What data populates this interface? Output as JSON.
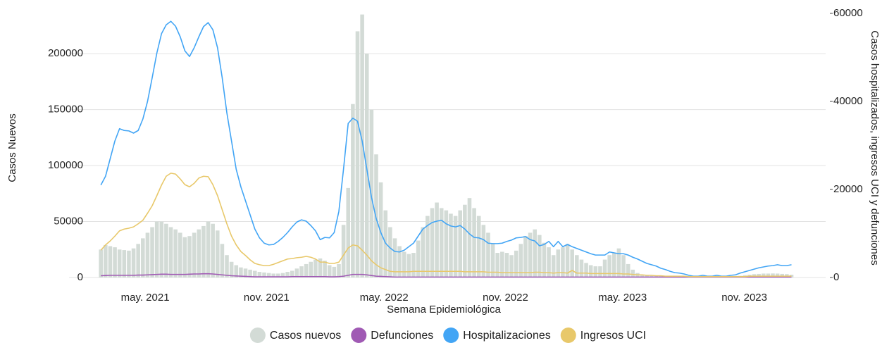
{
  "chart_data": {
    "type": "bar",
    "x_label": "Semana Epidemiológica",
    "y_label": "Casos Nuevos",
    "y2_label": "Casos hospitalizados, ingresos UCI y defunciones",
    "x": [
      0,
      1,
      2,
      3,
      4,
      5,
      6,
      7,
      8,
      9,
      10,
      11,
      12,
      13,
      14,
      15,
      16,
      17,
      18,
      19,
      20,
      21,
      22,
      23,
      24,
      25,
      26,
      27,
      28,
      29,
      30,
      31,
      32,
      33,
      34,
      35,
      36,
      37,
      38,
      39,
      40,
      41,
      42,
      43,
      44,
      45,
      46,
      47,
      48,
      49,
      50,
      51,
      52,
      53,
      54,
      55,
      56,
      57,
      58,
      59,
      60,
      61,
      62,
      63,
      64,
      65,
      66,
      67,
      68,
      69,
      70,
      71,
      72,
      73,
      74,
      75,
      76,
      77,
      78,
      79,
      80,
      81,
      82,
      83,
      84,
      85,
      86,
      87,
      88,
      89,
      90,
      91,
      92,
      93,
      94,
      95,
      96,
      97,
      98,
      99,
      100,
      101,
      102,
      103,
      104,
      105,
      106,
      107,
      108,
      109,
      110,
      111,
      112,
      113,
      114,
      115,
      116,
      117,
      118,
      119,
      120,
      121,
      122,
      123,
      124,
      125,
      126,
      127,
      128,
      129,
      130,
      131,
      132,
      133,
      134,
      135,
      136,
      137,
      138,
      139,
      140,
      141,
      142,
      143,
      144,
      145,
      146,
      147,
      148
    ],
    "xlim": [
      -3.5,
      152
    ],
    "xticks": [
      {
        "value": 9.5,
        "label": "may. 2021"
      },
      {
        "value": 35.5,
        "label": "nov. 2021"
      },
      {
        "value": 60.7,
        "label": "may. 2022"
      },
      {
        "value": 86.7,
        "label": "nov. 2022"
      },
      {
        "value": 111.8,
        "label": "may. 2023"
      },
      {
        "value": 137.9,
        "label": "nov. 2023"
      }
    ],
    "ylim": [
      0,
      236000
    ],
    "yticks": [
      0,
      50000,
      100000,
      150000,
      200000
    ],
    "y2lim": [
      0,
      60000
    ],
    "y2ticks": [
      0,
      20000,
      40000,
      60000
    ],
    "grid": true,
    "legend": "bottom",
    "series": [
      {
        "name": "Casos nuevos",
        "type": "bar",
        "color": "#d3dbd6",
        "values": [
          25000,
          29000,
          28000,
          27000,
          25000,
          24500,
          24000,
          26000,
          30000,
          35000,
          40000,
          45000,
          50000,
          50000,
          48000,
          45000,
          43000,
          40000,
          36000,
          37000,
          40000,
          43000,
          46000,
          50000,
          48000,
          42000,
          30000,
          20000,
          14000,
          11000,
          9000,
          8000,
          7000,
          6000,
          5000,
          4500,
          4000,
          3500,
          3500,
          4000,
          5000,
          6000,
          8000,
          10000,
          12000,
          14000,
          16000,
          17000,
          15000,
          11000,
          9500,
          12000,
          47000,
          80000,
          155000,
          220000,
          235000,
          200000,
          150000,
          110000,
          85000,
          60000,
          45000,
          35000,
          28000,
          23000,
          21000,
          22000,
          33000,
          45000,
          55000,
          62000,
          67000,
          62000,
          60000,
          57000,
          55000,
          60000,
          65000,
          71000,
          62000,
          55000,
          47000,
          40000,
          30000,
          22000,
          23000,
          22000,
          20000,
          24000,
          30000,
          37000,
          40000,
          43000,
          38000,
          31000,
          27000,
          20000,
          25000,
          27000,
          30000,
          25000,
          20000,
          16000,
          13000,
          11000,
          10000,
          10000,
          16000,
          20000,
          22000,
          26000,
          20000,
          12000,
          7000,
          4000,
          2500,
          2000,
          1500,
          1300,
          1200,
          1100,
          1000,
          1000,
          900,
          900,
          900,
          800,
          800,
          900,
          800,
          800,
          900,
          900,
          1000,
          1000,
          1200,
          1500,
          2000,
          2500,
          3000,
          3200,
          3500,
          3500,
          3600,
          3500,
          3200,
          3000,
          2500
        ]
      },
      {
        "name": "Defunciones",
        "type": "line",
        "axis": "y2",
        "color": "#a05ab4",
        "values": [
          400,
          450,
          500,
          500,
          500,
          500,
          500,
          500,
          550,
          550,
          600,
          650,
          700,
          750,
          750,
          700,
          700,
          700,
          700,
          750,
          800,
          800,
          850,
          850,
          800,
          700,
          600,
          500,
          400,
          350,
          300,
          250,
          200,
          150,
          150,
          150,
          150,
          150,
          150,
          150,
          150,
          200,
          200,
          200,
          200,
          200,
          200,
          200,
          200,
          150,
          150,
          200,
          300,
          500,
          700,
          700,
          700,
          600,
          450,
          300,
          250,
          200,
          150,
          100,
          100,
          100,
          100,
          100,
          100,
          100,
          100,
          100,
          100,
          100,
          100,
          100,
          100,
          100,
          100,
          100,
          100,
          100,
          100,
          100,
          100,
          100,
          100,
          100,
          100,
          100,
          100,
          100,
          100,
          100,
          100,
          100,
          100,
          100,
          100,
          100,
          100,
          100,
          100,
          100,
          100,
          100,
          100,
          100,
          100,
          100,
          100,
          100,
          100,
          100,
          100,
          100,
          100,
          100,
          100,
          100,
          100,
          100,
          100,
          100,
          100,
          100,
          100,
          100,
          100,
          100,
          100,
          100,
          100,
          100,
          100,
          100,
          100,
          100,
          100,
          100,
          100,
          100,
          100,
          100,
          100,
          100,
          100,
          100,
          100
        ]
      },
      {
        "name": "Hospitalizaciones",
        "type": "line",
        "axis": "y2",
        "color": "#42a5f5",
        "values": [
          21000,
          23000,
          27000,
          31000,
          33800,
          33400,
          33300,
          32800,
          33400,
          36000,
          40000,
          45400,
          51000,
          55400,
          57400,
          58200,
          57100,
          54700,
          51500,
          50200,
          52200,
          54700,
          57000,
          57900,
          56300,
          52200,
          45400,
          37400,
          31000,
          24600,
          20600,
          17400,
          14200,
          11000,
          9000,
          7800,
          7400,
          7500,
          8200,
          9100,
          10200,
          11500,
          12600,
          13100,
          12800,
          11800,
          10600,
          8600,
          9100,
          9000,
          10200,
          15000,
          24600,
          35000,
          36200,
          35500,
          31000,
          24600,
          18200,
          13400,
          10200,
          7800,
          6700,
          5900,
          5800,
          6200,
          7000,
          7800,
          9400,
          11000,
          11800,
          12500,
          12800,
          13000,
          12200,
          11700,
          11500,
          11800,
          11000,
          9900,
          9100,
          9000,
          8600,
          7800,
          7700,
          7700,
          7800,
          8200,
          8500,
          9000,
          9100,
          9300,
          8600,
          8300,
          7200,
          7500,
          8200,
          7000,
          8200,
          7000,
          7500,
          7000,
          6600,
          6200,
          5800,
          5400,
          5100,
          5100,
          5100,
          5800,
          5600,
          5400,
          5400,
          5100,
          4600,
          4200,
          3700,
          3200,
          2900,
          2600,
          2100,
          1800,
          1400,
          1100,
          1000,
          800,
          500,
          300,
          300,
          500,
          300,
          300,
          500,
          300,
          300,
          500,
          600,
          1000,
          1300,
          1600,
          1900,
          2200,
          2400,
          2600,
          2700,
          2900,
          2700,
          2700,
          2900
        ]
      },
      {
        "name": "Ingresos UCI",
        "type": "line",
        "axis": "y2",
        "color": "#e8c86a",
        "values": [
          6200,
          7400,
          8300,
          9400,
          10600,
          11000,
          11200,
          11500,
          12200,
          13000,
          14600,
          16300,
          18600,
          21000,
          23000,
          23700,
          23500,
          22400,
          21100,
          20600,
          21400,
          22600,
          23000,
          22900,
          21100,
          18600,
          15400,
          12200,
          9400,
          7400,
          5900,
          5000,
          4000,
          3200,
          2900,
          2700,
          2700,
          3000,
          3400,
          3800,
          4200,
          4300,
          4500,
          4600,
          4800,
          4600,
          4200,
          3500,
          3500,
          3200,
          3200,
          3500,
          5100,
          6700,
          7400,
          7200,
          6200,
          5100,
          3800,
          2900,
          2200,
          1800,
          1400,
          1300,
          1300,
          1300,
          1300,
          1400,
          1400,
          1400,
          1400,
          1400,
          1400,
          1400,
          1400,
          1400,
          1400,
          1400,
          1300,
          1300,
          1300,
          1300,
          1300,
          1200,
          1200,
          1200,
          1100,
          1100,
          1100,
          1100,
          1100,
          1100,
          1100,
          1200,
          1200,
          1100,
          1100,
          1000,
          1100,
          1100,
          1000,
          1600,
          1000,
          1000,
          1000,
          900,
          900,
          900,
          900,
          900,
          900,
          900,
          800,
          800,
          700,
          600,
          600,
          500,
          500,
          400,
          400,
          300,
          300,
          300,
          300,
          300,
          200,
          200,
          200,
          200,
          200,
          200,
          200,
          200,
          200,
          200,
          200,
          200,
          200,
          300,
          300,
          300,
          300,
          300,
          300,
          300,
          300,
          300,
          300
        ]
      }
    ]
  }
}
